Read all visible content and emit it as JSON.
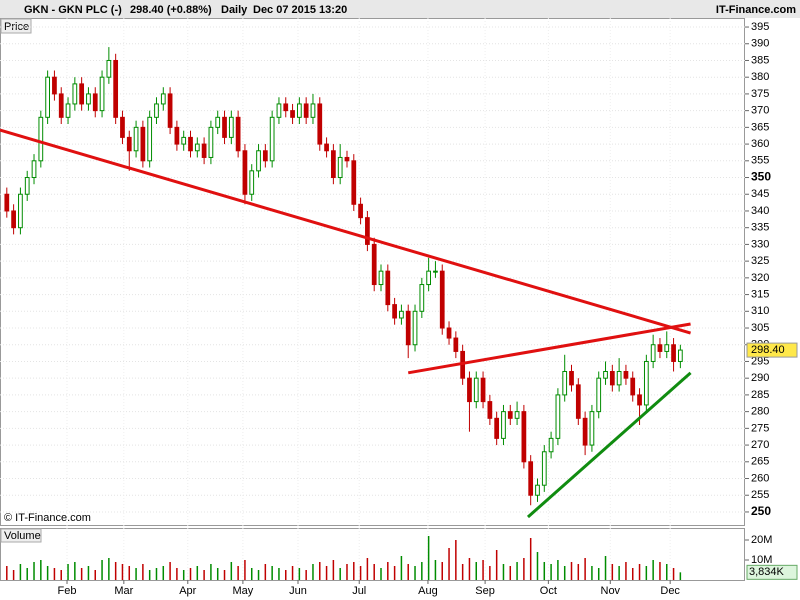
{
  "chart_data": {
    "type": "candlestick",
    "header": {
      "symbol": "GKN - GKN PLC (-)",
      "quote": "298.40 (+0.88%)",
      "period": "Daily",
      "date": "Dec 07 2015 13:20",
      "source": "IT-Finance.com"
    },
    "price_label": "Price",
    "volume_label": "Volume",
    "copyright": "© IT-Finance.com",
    "xlim": [
      -1,
      108.5
    ],
    "xticks": [
      {
        "value": 8.85,
        "label": "Feb"
      },
      {
        "value": 17.2,
        "label": "Mar"
      },
      {
        "value": 26.6,
        "label": "Apr"
      },
      {
        "value": 34.7,
        "label": "May"
      },
      {
        "value": 42.8,
        "label": "Jun"
      },
      {
        "value": 51.8,
        "label": "Jul"
      },
      {
        "value": 61.9,
        "label": "Aug"
      },
      {
        "value": 70.3,
        "label": "Sep"
      },
      {
        "value": 79.6,
        "label": "Oct"
      },
      {
        "value": 88.7,
        "label": "Nov"
      },
      {
        "value": 97.5,
        "label": "Dec"
      }
    ],
    "ylim": [
      246.1,
      397.7
    ],
    "yticks": [
      250,
      255,
      260,
      265,
      270,
      275,
      280,
      285,
      290,
      295,
      300,
      305,
      310,
      315,
      320,
      325,
      330,
      335,
      340,
      345,
      350,
      355,
      360,
      365,
      370,
      375,
      380,
      385,
      390,
      395
    ],
    "bold_ticks": [
      250,
      350
    ],
    "grid": true,
    "up_color": "#008c00",
    "down_color": "#c00000",
    "open": [
      345,
      340,
      335,
      345,
      350,
      355,
      368,
      380,
      375,
      368,
      372,
      378,
      372,
      375,
      370,
      380,
      385,
      368,
      362,
      358,
      365,
      355,
      368,
      372,
      375,
      365,
      360,
      362,
      358,
      360,
      356,
      365,
      368,
      362,
      368,
      358,
      345,
      352,
      358,
      355,
      368,
      372,
      370,
      368,
      372,
      368,
      372,
      360,
      358,
      350,
      356,
      355,
      342,
      338,
      330,
      318,
      322,
      312,
      308,
      310,
      300,
      310,
      318,
      322,
      322,
      305,
      302,
      298,
      290,
      283,
      290,
      283,
      278,
      272,
      280,
      278,
      280,
      265,
      255,
      258,
      268,
      272,
      285,
      292,
      288,
      278,
      270,
      280,
      290,
      292,
      288,
      292,
      290,
      285,
      282,
      295,
      300,
      298,
      300,
      295
    ],
    "high": [
      347,
      342,
      347,
      352,
      357,
      370,
      382,
      382,
      377,
      374,
      380,
      380,
      377,
      377,
      382,
      389,
      387,
      370,
      364,
      367,
      367,
      370,
      374,
      377,
      377,
      367,
      364,
      364,
      362,
      362,
      367,
      370,
      370,
      370,
      370,
      360,
      354,
      360,
      360,
      370,
      374,
      374,
      372,
      374,
      374,
      375,
      374,
      362,
      360,
      360,
      358,
      357,
      344,
      340,
      332,
      324,
      324,
      314,
      312,
      312,
      312,
      320,
      326,
      325,
      324,
      307,
      304,
      300,
      292,
      292,
      292,
      285,
      280,
      282,
      282,
      283,
      282,
      267,
      260,
      270,
      274,
      287,
      297,
      294,
      290,
      280,
      282,
      292,
      295,
      294,
      296,
      294,
      292,
      287,
      297,
      303,
      302,
      304,
      302,
      300
    ],
    "low": [
      338,
      333,
      333,
      343,
      348,
      353,
      366,
      373,
      366,
      366,
      370,
      370,
      370,
      368,
      368,
      378,
      366,
      360,
      352,
      356,
      353,
      353,
      366,
      370,
      363,
      358,
      358,
      356,
      356,
      354,
      354,
      363,
      360,
      360,
      356,
      342,
      343,
      350,
      353,
      353,
      366,
      368,
      366,
      366,
      366,
      366,
      358,
      356,
      348,
      348,
      353,
      340,
      336,
      328,
      316,
      316,
      310,
      306,
      306,
      296,
      298,
      308,
      316,
      320,
      303,
      300,
      296,
      288,
      274,
      281,
      281,
      276,
      270,
      270,
      276,
      276,
      263,
      252,
      253,
      256,
      266,
      270,
      283,
      286,
      276,
      267,
      268,
      278,
      288,
      286,
      286,
      288,
      283,
      276,
      280,
      293,
      296,
      296,
      292,
      293
    ],
    "close": [
      340,
      335,
      345,
      350,
      355,
      368,
      380,
      375,
      368,
      372,
      378,
      372,
      375,
      370,
      380,
      385,
      368,
      362,
      358,
      365,
      355,
      368,
      372,
      375,
      365,
      360,
      362,
      358,
      360,
      356,
      365,
      368,
      362,
      368,
      358,
      345,
      352,
      358,
      355,
      368,
      372,
      370,
      368,
      372,
      368,
      372,
      360,
      358,
      350,
      356,
      355,
      342,
      338,
      330,
      318,
      322,
      312,
      308,
      310,
      300,
      310,
      318,
      322,
      322,
      305,
      302,
      298,
      290,
      283,
      290,
      283,
      278,
      272,
      280,
      278,
      280,
      265,
      255,
      258,
      268,
      272,
      285,
      292,
      288,
      278,
      270,
      280,
      290,
      292,
      288,
      292,
      290,
      285,
      282,
      295,
      300,
      298,
      300,
      295,
      298.4
    ],
    "volume": [
      7,
      5,
      8,
      6,
      9,
      10,
      7,
      6,
      5,
      8,
      9,
      6,
      7,
      5,
      10,
      11,
      9,
      8,
      7,
      6,
      8,
      5,
      6,
      7,
      9,
      6,
      5,
      6,
      7,
      5,
      8,
      6,
      5,
      9,
      7,
      10,
      6,
      5,
      8,
      7,
      6,
      5,
      7,
      6,
      5,
      8,
      9,
      7,
      10,
      6,
      8,
      9,
      7,
      11,
      8,
      6,
      9,
      7,
      12,
      8,
      7,
      9,
      22,
      10,
      9,
      16,
      20,
      8,
      11,
      9,
      10,
      7,
      15,
      8,
      7,
      9,
      11,
      21,
      14,
      9,
      8,
      10,
      7,
      9,
      8,
      11,
      7,
      6,
      12,
      8,
      7,
      9,
      6,
      8,
      7,
      10,
      9,
      8,
      6,
      3.834
    ],
    "volume_ylim": [
      0,
      26
    ],
    "volume_ticks": [
      {
        "value": 10,
        "label": "10M"
      },
      {
        "value": 20,
        "label": "20M"
      }
    ],
    "last_price": {
      "value": 298.4,
      "label": "298.40"
    },
    "last_volume": {
      "value": 3.834,
      "label": "3,834K"
    },
    "trendlines": [
      {
        "x": [
          -1,
          100.5
        ],
        "y": [
          364.2,
          303.5
        ],
        "color": "#e01010"
      },
      {
        "x": [
          59,
          100.5
        ],
        "y": [
          291.6,
          306.2
        ],
        "color": "#e01010"
      },
      {
        "x": [
          76.6,
          100.5
        ],
        "y": [
          248.5,
          291.6
        ],
        "color": "#108c10"
      }
    ]
  }
}
